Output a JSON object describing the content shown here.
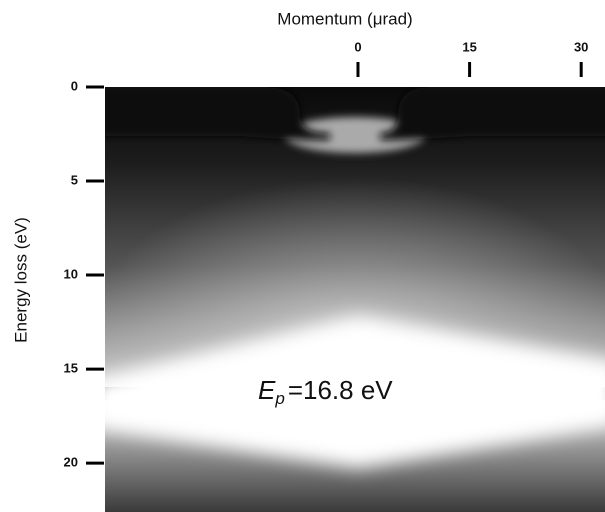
{
  "chart_data": {
    "type": "image",
    "x_label": "Momentum (μrad)",
    "y_label": "Energy loss (eV)",
    "xlim": [
      -34,
      33.2
    ],
    "xticks": [
      0,
      15,
      30
    ],
    "ylim": [
      0,
      22.6
    ],
    "yticks": [
      0,
      5,
      10,
      15,
      20
    ],
    "annotation": {
      "symbol": "E",
      "subscript": "p",
      "text": "=16.8 eV"
    }
  }
}
